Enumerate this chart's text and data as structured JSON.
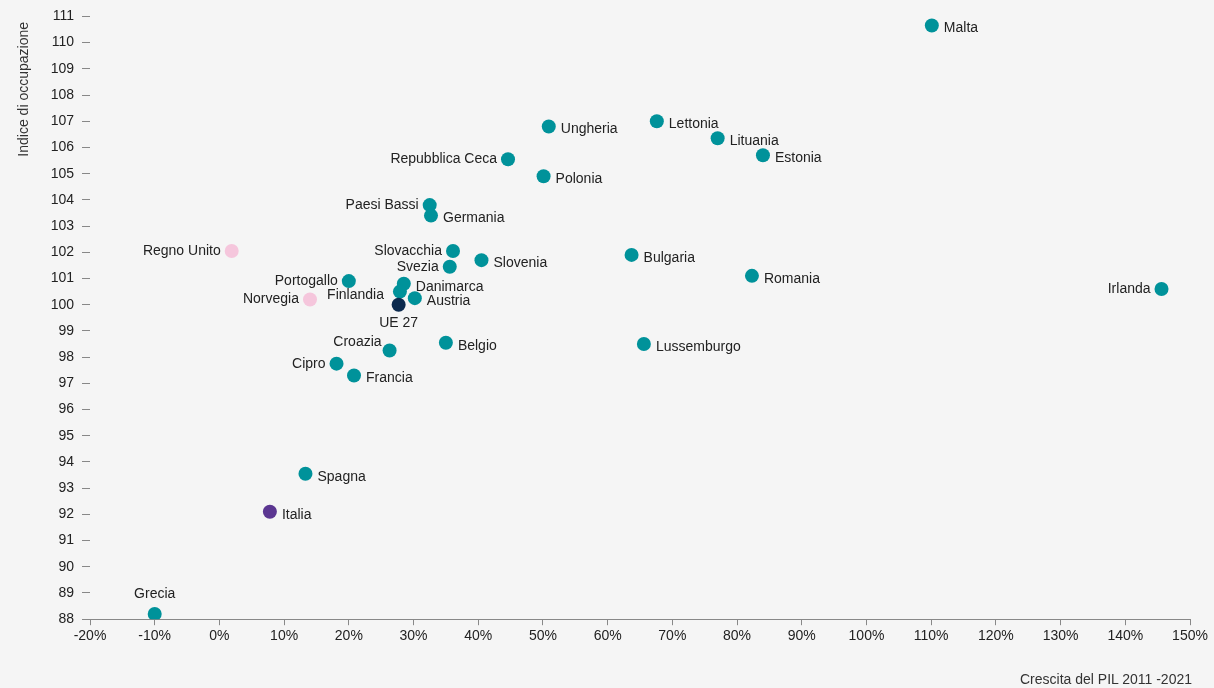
{
  "chart_data": {
    "type": "scatter",
    "xlabel": "Crescita del PIL 2011 -2021",
    "ylabel": "Indice di occupazione",
    "series": [
      {
        "x": [
          110.1,
          145.6,
          50.9,
          67.6,
          77.0,
          84.0,
          44.6,
          50.1,
          32.5,
          32.7,
          1.9,
          36.1,
          40.5,
          63.7,
          35.6,
          82.3,
          20.0,
          28.5,
          27.9,
          30.2,
          14.0,
          27.7,
          35.0,
          65.6,
          26.3,
          18.1,
          20.8,
          13.3,
          7.8,
          -10.0
        ],
        "values": [
          110.65,
          100.6,
          106.8,
          107.0,
          106.35,
          105.7,
          105.55,
          104.9,
          103.8,
          103.4,
          102.05,
          102.05,
          101.7,
          101.9,
          101.45,
          101.1,
          100.9,
          100.8,
          100.5,
          100.25,
          100.2,
          100.0,
          98.55,
          98.5,
          98.25,
          97.75,
          97.3,
          93.55,
          92.1,
          88.2
        ],
        "colors": [
          "#00929a",
          "#00929a",
          "#00929a",
          "#00929a",
          "#00929a",
          "#00929a",
          "#00929a",
          "#00929a",
          "#00929a",
          "#00929a",
          "#f5c6dc",
          "#00929a",
          "#00929a",
          "#00929a",
          "#00929a",
          "#00929a",
          "#00929a",
          "#00929a",
          "#00929a",
          "#00929a",
          "#f5c6dc",
          "#0b2a4e",
          "#00929a",
          "#00929a",
          "#00929a",
          "#00929a",
          "#00929a",
          "#00929a",
          "#5b3691",
          "#00929a"
        ]
      }
    ],
    "annotations": [
      {
        "text": "Malta",
        "x": 110.1,
        "y": 110.65
      },
      {
        "text": "Irlanda",
        "x": 145.6,
        "y": 100.6
      },
      {
        "text": "Ungheria",
        "x": 50.9,
        "y": 106.8
      },
      {
        "text": "Lettonia",
        "x": 67.6,
        "y": 107.0
      },
      {
        "text": "Lituania",
        "x": 77.0,
        "y": 106.35
      },
      {
        "text": "Estonia",
        "x": 84.0,
        "y": 105.7
      },
      {
        "text": "Repubblica Ceca",
        "x": 44.6,
        "y": 105.55
      },
      {
        "text": "Polonia",
        "x": 50.1,
        "y": 104.9
      },
      {
        "text": "Paesi Bassi",
        "x": 32.5,
        "y": 103.8
      },
      {
        "text": "Germania",
        "x": 32.7,
        "y": 103.4
      },
      {
        "text": "Regno Unito",
        "x": 1.9,
        "y": 102.05
      },
      {
        "text": "Slovacchia",
        "x": 36.1,
        "y": 102.05
      },
      {
        "text": "Slovenia",
        "x": 40.5,
        "y": 101.7
      },
      {
        "text": "Bulgaria",
        "x": 63.7,
        "y": 101.9
      },
      {
        "text": "Svezia",
        "x": 35.6,
        "y": 101.45
      },
      {
        "text": "Romania",
        "x": 82.3,
        "y": 101.1
      },
      {
        "text": "Portogallo",
        "x": 20.0,
        "y": 100.9
      },
      {
        "text": "Danimarca",
        "x": 28.5,
        "y": 100.8
      },
      {
        "text": "Finlandia",
        "x": 27.9,
        "y": 100.5
      },
      {
        "text": "Austria",
        "x": 30.2,
        "y": 100.25
      },
      {
        "text": "Norvegia",
        "x": 14.0,
        "y": 100.2
      },
      {
        "text": "UE 27",
        "x": 27.7,
        "y": 100.0
      },
      {
        "text": "Belgio",
        "x": 35.0,
        "y": 98.55
      },
      {
        "text": "Lussemburgo",
        "x": 65.6,
        "y": 98.5
      },
      {
        "text": "Croazia",
        "x": 26.3,
        "y": 98.25
      },
      {
        "text": "Cipro",
        "x": 18.1,
        "y": 97.75
      },
      {
        "text": "Francia",
        "x": 20.8,
        "y": 97.3
      },
      {
        "text": "Spagna",
        "x": 13.3,
        "y": 93.55
      },
      {
        "text": "Italia",
        "x": 7.8,
        "y": 92.1
      },
      {
        "text": "Grecia",
        "x": -10.0,
        "y": 88.2
      }
    ],
    "xlim": [
      -20,
      150
    ],
    "xticks": [
      {
        "value": -20,
        "label": "-20%"
      },
      {
        "value": -10,
        "label": "-10%"
      },
      {
        "value": 0,
        "label": "0%"
      },
      {
        "value": 10,
        "label": "10%"
      },
      {
        "value": 20,
        "label": "20%"
      },
      {
        "value": 30,
        "label": "30%"
      },
      {
        "value": 40,
        "label": "40%"
      },
      {
        "value": 50,
        "label": "50%"
      },
      {
        "value": 60,
        "label": "60%"
      },
      {
        "value": 70,
        "label": "70%"
      },
      {
        "value": 80,
        "label": "80%"
      },
      {
        "value": 90,
        "label": "90%"
      },
      {
        "value": 100,
        "label": "100%"
      },
      {
        "value": 110,
        "label": "110%"
      },
      {
        "value": 120,
        "label": "120%"
      },
      {
        "value": 130,
        "label": "130%"
      },
      {
        "value": 140,
        "label": "140%"
      },
      {
        "value": 150,
        "label": "150%"
      }
    ],
    "ylim": [
      88,
      111
    ],
    "yticks": [
      88,
      89,
      90,
      91,
      92,
      93,
      94,
      95,
      96,
      97,
      98,
      99,
      100,
      101,
      102,
      103,
      104,
      105,
      106,
      107,
      108,
      109,
      110,
      111
    ],
    "grid": false,
    "legend": false,
    "marker": "circle"
  }
}
